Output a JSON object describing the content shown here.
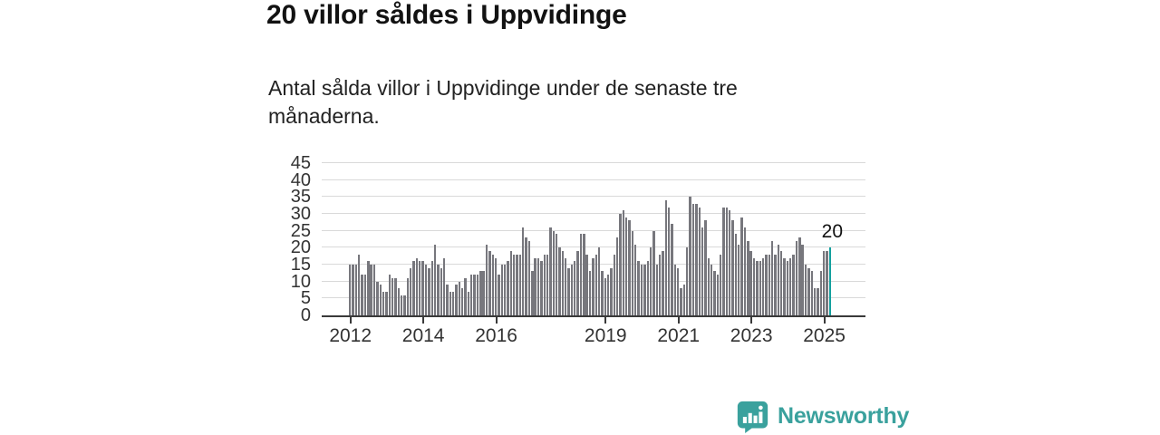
{
  "header": {
    "title": "20 villor såldes i Uppvidinge",
    "subtitle": "Antal sålda villor i Uppvidinge under de senaste tre månaderna."
  },
  "chart_data": {
    "type": "bar",
    "start_month": "2012-01",
    "end_month": "2025-03",
    "frequency": "monthly",
    "values": [
      15,
      15,
      15,
      18,
      12,
      12,
      16,
      15,
      15,
      10,
      9,
      7,
      7,
      12,
      11,
      11,
      8,
      6,
      6,
      11,
      14,
      16,
      17,
      16,
      16,
      15,
      14,
      16,
      21,
      15,
      14,
      17,
      9,
      7,
      7,
      9,
      10,
      8,
      11,
      7,
      12,
      12,
      12,
      13,
      13,
      21,
      19,
      18,
      17,
      12,
      15,
      15,
      16,
      19,
      18,
      18,
      18,
      26,
      23,
      22,
      13,
      17,
      17,
      16,
      18,
      18,
      26,
      25,
      24,
      20,
      19,
      17,
      14,
      15,
      16,
      19,
      24,
      24,
      18,
      13,
      17,
      18,
      20,
      13,
      11,
      12,
      14,
      18,
      23,
      30,
      31,
      29,
      28,
      25,
      21,
      16,
      15,
      15,
      16,
      20,
      25,
      15,
      18,
      19,
      34,
      32,
      27,
      15,
      14,
      8,
      9,
      20,
      35,
      33,
      33,
      32,
      26,
      28,
      17,
      15,
      13,
      12,
      18,
      32,
      32,
      31,
      28,
      24,
      21,
      29,
      26,
      22,
      19,
      17,
      16,
      16,
      17,
      18,
      18,
      22,
      18,
      21,
      19,
      17,
      16,
      17,
      18,
      22,
      23,
      21,
      15,
      14,
      13,
      8,
      8,
      13,
      19,
      19,
      20
    ],
    "ylim": [
      0,
      45
    ],
    "yticks": [
      0,
      5,
      10,
      15,
      20,
      25,
      30,
      35,
      40,
      45
    ],
    "xticks": [
      2012,
      2014,
      2016,
      2019,
      2021,
      2023,
      2025
    ],
    "grid": true,
    "legend": "none",
    "bar_color": "#77777d",
    "axis_color": "#3a3a3a",
    "grid_color": "#d9d9d9",
    "highlight": {
      "index": 158,
      "label": "20",
      "color": "#12a09e"
    }
  },
  "footer": {
    "brand": "Newsworthy",
    "brand_color": "#3aa19d"
  }
}
